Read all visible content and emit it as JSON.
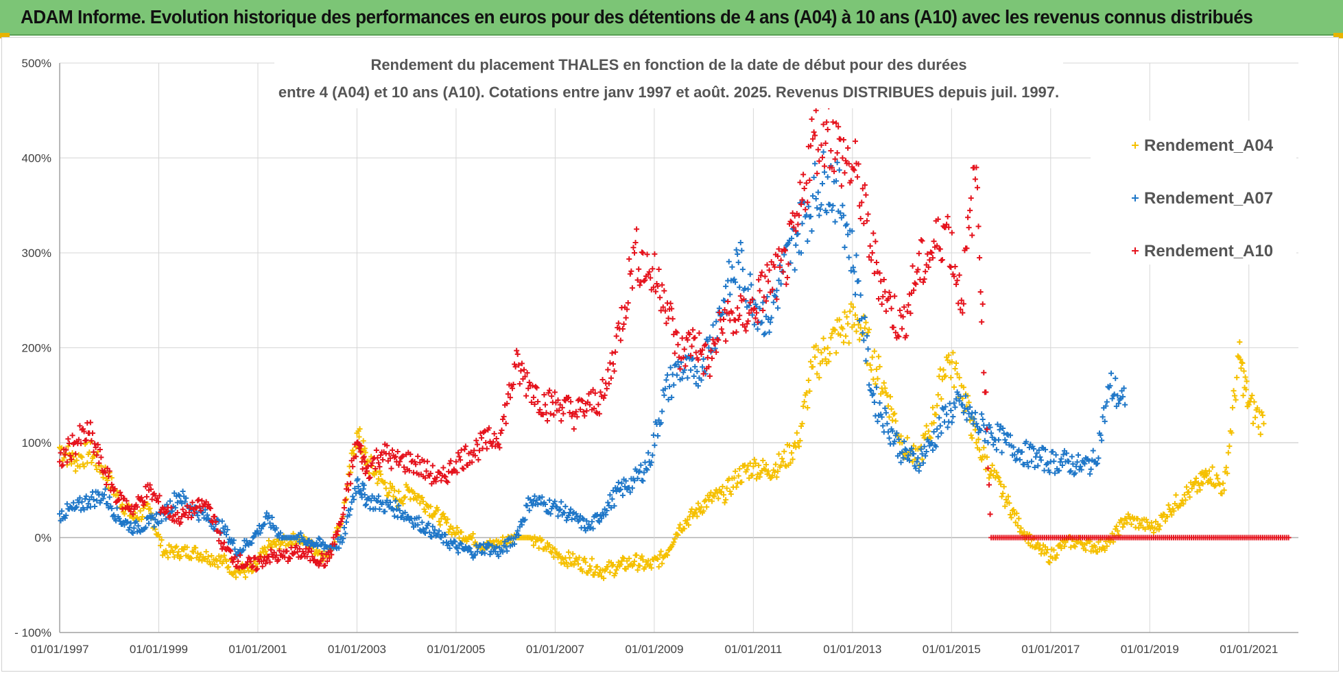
{
  "banner": {
    "title": "ADAM Informe. Evolution historique des performances en euros pour des détentions de 4 ans (A04) à 10 ans (A10) avec les revenus connus distribués",
    "color": "#7cc576"
  },
  "chart_data": {
    "type": "scatter",
    "title_line1": "Rendement du placement THALES en fonction de la date de début pour des durées",
    "title_line2": "entre 4 (A04) et 10 ans (A10).  Cotations entre janv 1997 et août. 2025. Revenus DISTRIBUES depuis juil. 1997.",
    "xlabel": "",
    "ylabel": "",
    "x_start": "01/01/1997",
    "x_end": "01/01/2022",
    "xlim_years": [
      1997.0,
      2022.0
    ],
    "ylim": [
      -100,
      500
    ],
    "y_ticks": [
      "500%",
      "400%",
      "300%",
      "200%",
      "100%",
      "0%",
      "- 100%"
    ],
    "y_tick_values": [
      500,
      400,
      300,
      200,
      100,
      0,
      -100
    ],
    "x_ticks": [
      "01/01/1997",
      "01/01/1999",
      "01/01/2001",
      "01/01/2003",
      "01/01/2005",
      "01/01/2007",
      "01/01/2009",
      "01/01/2011",
      "01/01/2013",
      "01/01/2015",
      "01/01/2017",
      "01/01/2019",
      "01/01/2021"
    ],
    "x_tick_values": [
      1997,
      1999,
      2001,
      2003,
      2005,
      2007,
      2009,
      2011,
      2013,
      2015,
      2017,
      2019,
      2021
    ],
    "grid": true,
    "legend_position": "top-right",
    "marker": "+",
    "series": [
      {
        "name": "Rendement_A04",
        "color": "#f5c000",
        "x": [
          1997.0,
          1997.3,
          1997.6,
          1997.9,
          1998.2,
          1998.5,
          1998.8,
          1999.1,
          1999.4,
          1999.7,
          2000.0,
          2000.3,
          2000.6,
          2000.9,
          2001.2,
          2001.5,
          2001.8,
          2002.1,
          2002.4,
          2002.7,
          2003.0,
          2003.2,
          2003.5,
          2003.8,
          2004.1,
          2004.4,
          2004.7,
          2005.0,
          2005.3,
          2005.6,
          2005.9,
          2006.2,
          2006.5,
          2006.8,
          2007.1,
          2007.4,
          2007.7,
          2008.0,
          2008.3,
          2008.6,
          2008.9,
          2009.2,
          2009.5,
          2009.8,
          2010.1,
          2010.4,
          2010.7,
          2011.0,
          2011.3,
          2011.6,
          2011.9,
          2012.2,
          2012.5,
          2012.8,
          2013.1,
          2013.4,
          2013.7,
          2014.0,
          2014.3,
          2014.6,
          2014.9,
          2015.2,
          2015.5,
          2015.8,
          2016.1,
          2016.4,
          2016.7,
          2017.0,
          2017.3,
          2017.6,
          2017.9,
          2018.2,
          2018.5,
          2018.8,
          2019.1,
          2019.4,
          2019.7,
          2020.0,
          2020.2,
          2020.5,
          2020.8,
          2021.0,
          2021.3
        ],
        "y": [
          95,
          80,
          90,
          70,
          40,
          20,
          30,
          -15,
          -15,
          -15,
          -20,
          -25,
          -35,
          -35,
          -10,
          -5,
          0,
          -10,
          -20,
          20,
          110,
          80,
          60,
          40,
          50,
          35,
          20,
          5,
          0,
          -10,
          -5,
          0,
          0,
          -10,
          -20,
          -25,
          -30,
          -35,
          -30,
          -25,
          -30,
          -20,
          10,
          25,
          40,
          45,
          65,
          75,
          70,
          80,
          100,
          180,
          200,
          220,
          230,
          190,
          150,
          100,
          80,
          120,
          190,
          160,
          100,
          70,
          40,
          10,
          -10,
          -20,
          -5,
          -5,
          -10,
          -5,
          20,
          15,
          10,
          30,
          45,
          55,
          70,
          50,
          190,
          140,
          120
        ]
      },
      {
        "name": "Rendement_A07",
        "color": "#1f77c8",
        "x": [
          1997.0,
          1997.3,
          1997.6,
          1997.9,
          1998.2,
          1998.5,
          1998.8,
          1999.1,
          1999.4,
          1999.7,
          2000.0,
          2000.3,
          2000.6,
          2000.9,
          2001.2,
          2001.5,
          2001.8,
          2002.1,
          2002.4,
          2002.7,
          2003.0,
          2003.2,
          2003.5,
          2003.8,
          2004.1,
          2004.4,
          2004.7,
          2005.0,
          2005.3,
          2005.6,
          2005.9,
          2006.2,
          2006.5,
          2006.8,
          2007.1,
          2007.4,
          2007.7,
          2008.0,
          2008.3,
          2008.6,
          2008.9,
          2009.2,
          2009.5,
          2009.8,
          2010.1,
          2010.4,
          2010.7,
          2011.0,
          2011.3,
          2011.6,
          2011.9,
          2012.2,
          2012.5,
          2012.8,
          2013.1,
          2013.4,
          2013.7,
          2014.0,
          2014.3,
          2014.6,
          2014.9,
          2015.2,
          2015.5,
          2015.8,
          2016.1,
          2016.4,
          2016.7,
          2017.0,
          2017.3,
          2017.6,
          2017.9,
          2018.2,
          2018.5
        ],
        "y": [
          25,
          30,
          40,
          45,
          20,
          10,
          15,
          25,
          45,
          30,
          20,
          10,
          -15,
          0,
          20,
          0,
          0,
          -5,
          -10,
          -5,
          60,
          40,
          35,
          30,
          20,
          10,
          0,
          -10,
          -15,
          -10,
          -15,
          0,
          40,
          35,
          30,
          20,
          10,
          30,
          50,
          60,
          80,
          150,
          180,
          170,
          200,
          250,
          290,
          250,
          230,
          280,
          320,
          360,
          380,
          350,
          270,
          150,
          120,
          90,
          80,
          100,
          130,
          140,
          120,
          110,
          100,
          90,
          85,
          80,
          80,
          75,
          80,
          160,
          140
        ]
      },
      {
        "name": "Rendement_A10",
        "color": "#e5131d",
        "x": [
          1997.0,
          1997.3,
          1997.6,
          1997.9,
          1998.2,
          1998.5,
          1998.8,
          1999.1,
          1999.4,
          1999.7,
          2000.0,
          2000.3,
          2000.6,
          2000.9,
          2001.2,
          2001.5,
          2001.8,
          2002.1,
          2002.4,
          2002.7,
          2003.0,
          2003.2,
          2003.5,
          2003.8,
          2004.1,
          2004.4,
          2004.7,
          2005.0,
          2005.3,
          2005.6,
          2005.9,
          2006.2,
          2006.5,
          2006.8,
          2007.1,
          2007.4,
          2007.7,
          2008.0,
          2008.3,
          2008.6,
          2008.9,
          2009.2,
          2009.5,
          2009.8,
          2010.1,
          2010.4,
          2010.7,
          2011.0,
          2011.3,
          2011.6,
          2011.9,
          2012.2,
          2012.5,
          2012.8,
          2013.1,
          2013.4,
          2013.7,
          2014.0,
          2014.3,
          2014.6,
          2014.9,
          2015.2,
          2015.5,
          2015.8,
          2016.2,
          2016.6,
          2017.0,
          2017.4,
          2017.8,
          2018.2,
          2018.6,
          2019.0,
          2019.4,
          2019.8,
          2020.2,
          2020.6,
          2021.0,
          2021.4,
          2021.8
        ],
        "y": [
          80,
          100,
          110,
          70,
          40,
          30,
          50,
          30,
          20,
          30,
          35,
          -10,
          -25,
          -30,
          -20,
          -20,
          -15,
          -20,
          -25,
          20,
          100,
          70,
          90,
          80,
          80,
          70,
          60,
          80,
          90,
          100,
          110,
          180,
          160,
          140,
          140,
          130,
          140,
          150,
          220,
          300,
          280,
          260,
          190,
          210,
          180,
          230,
          230,
          240,
          270,
          280,
          330,
          420,
          430,
          400,
          380,
          300,
          250,
          220,
          280,
          300,
          330,
          250,
          390,
          0,
          0,
          0,
          0,
          0,
          0,
          0,
          0,
          0,
          0,
          0,
          0,
          0,
          0,
          0,
          0
        ]
      }
    ]
  }
}
